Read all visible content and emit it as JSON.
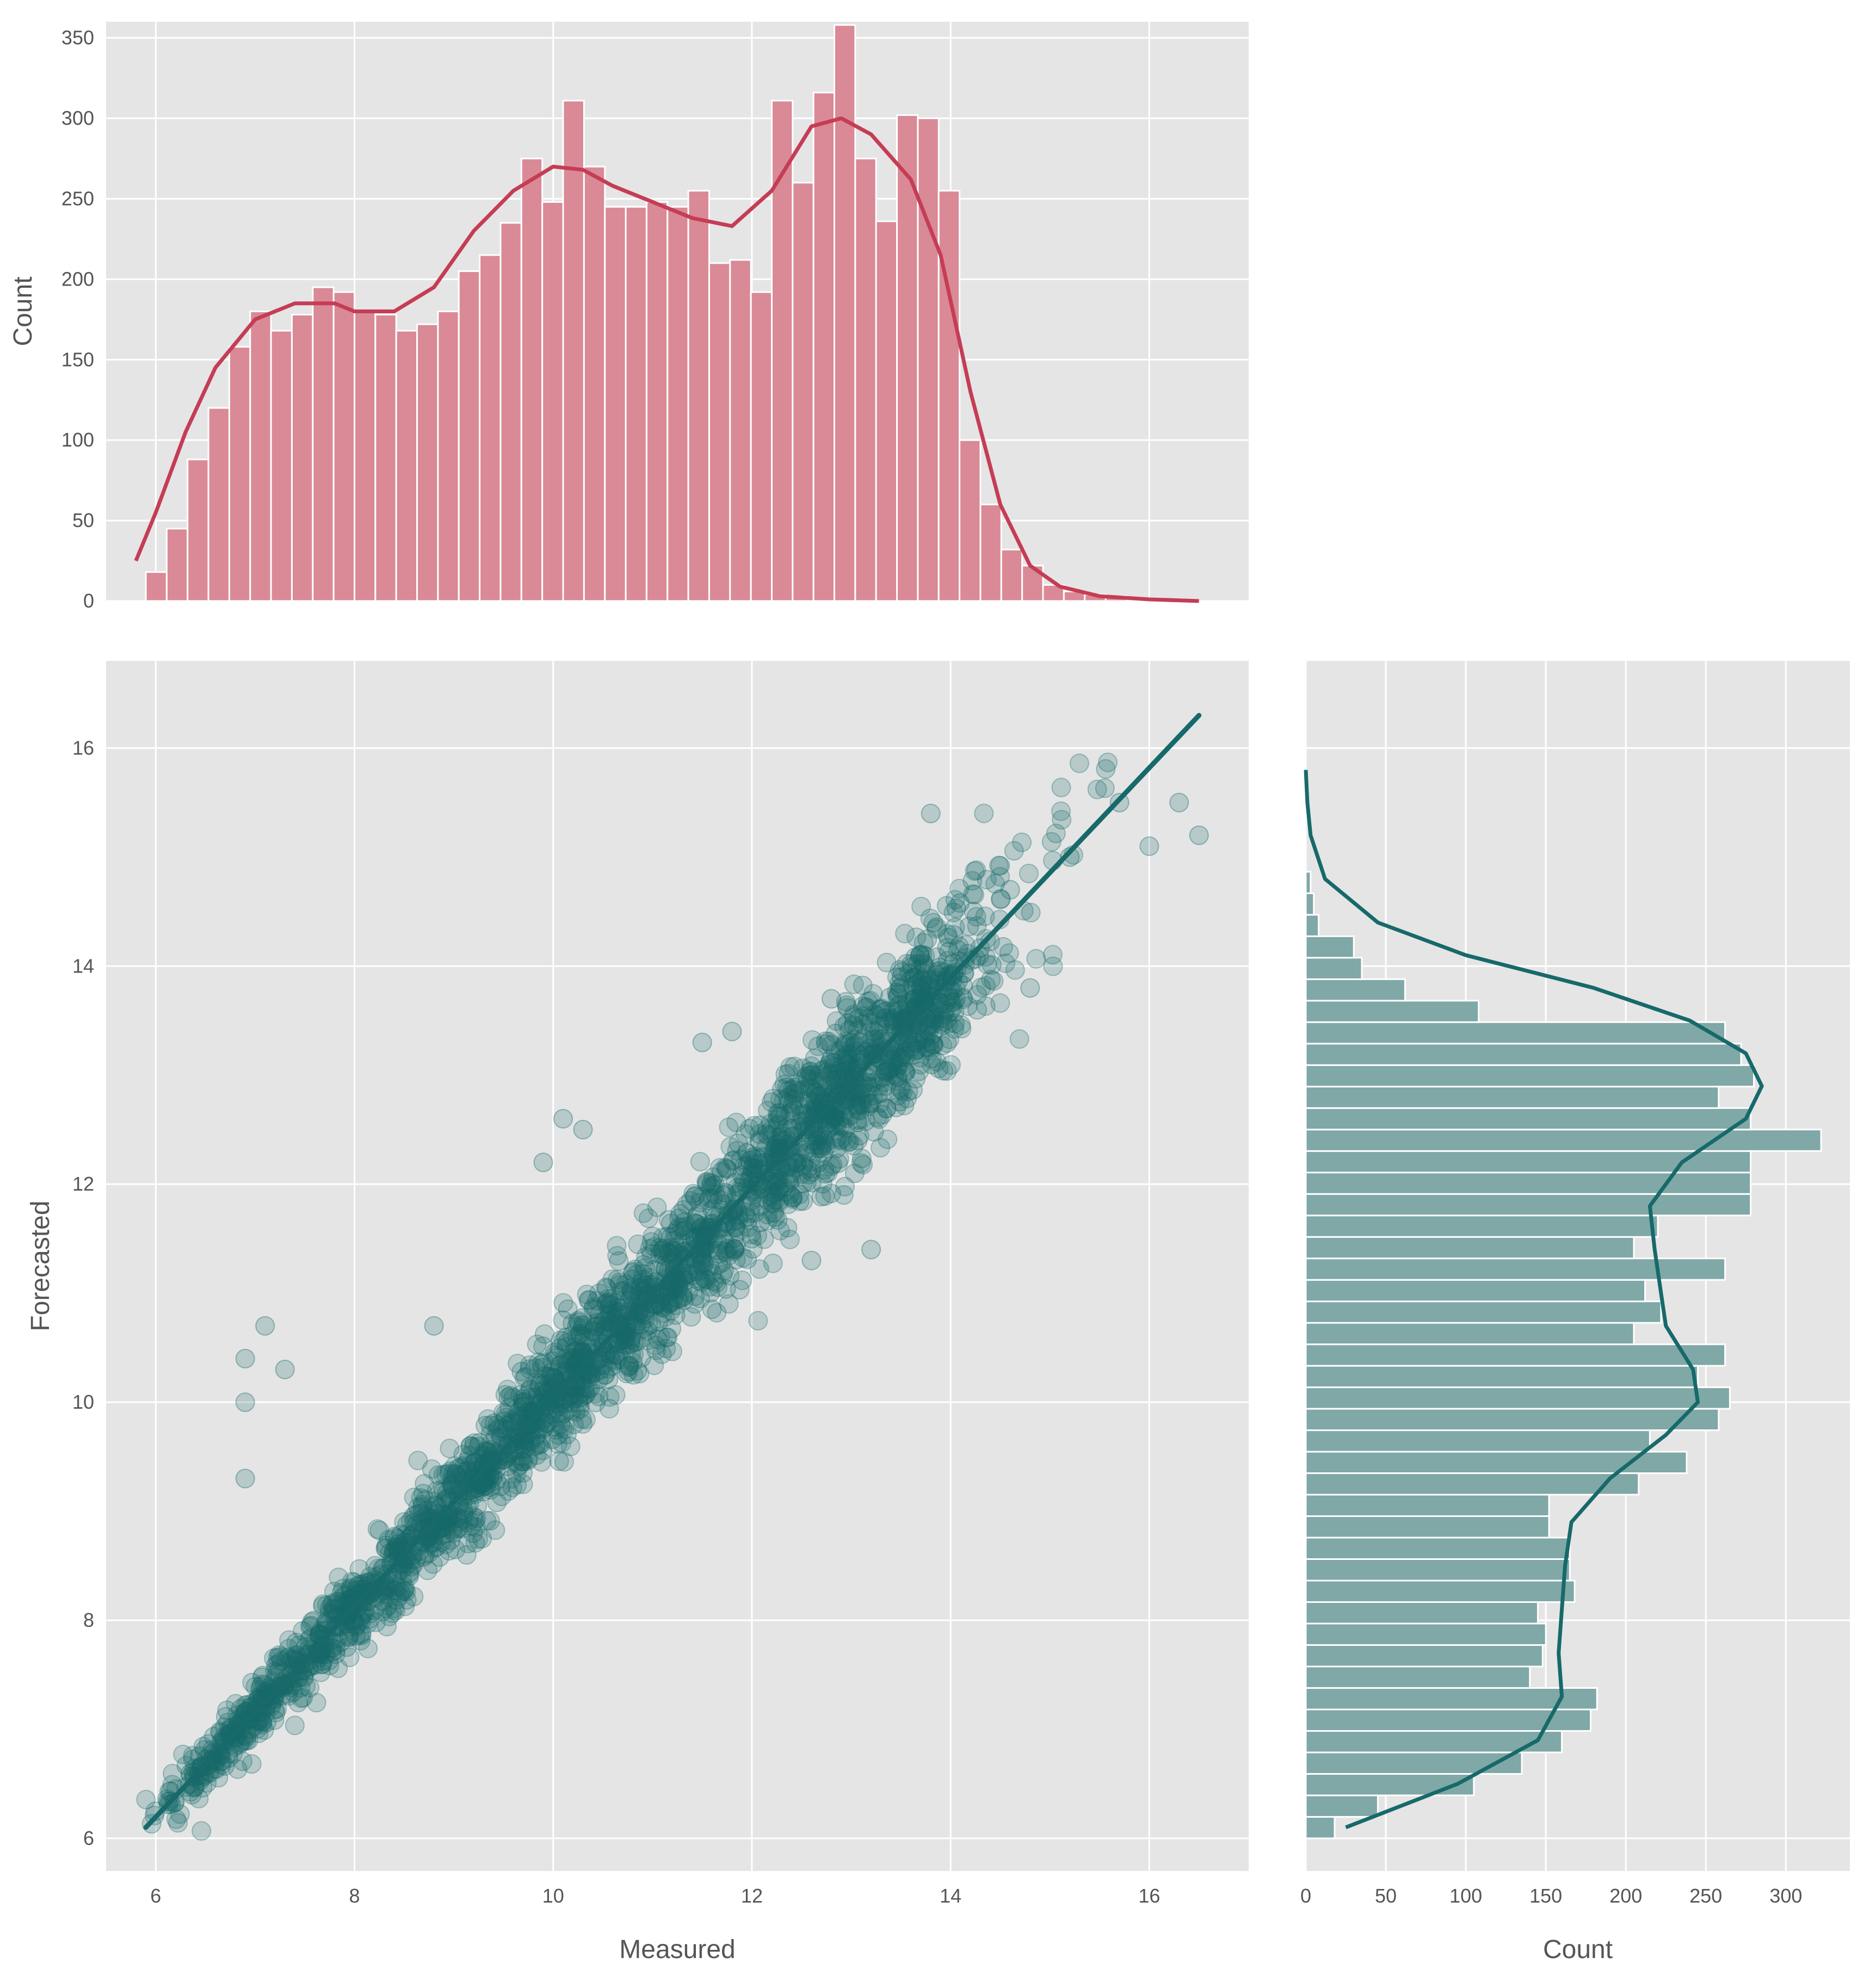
{
  "colors": {
    "panel_bg": "#e5e5e5",
    "grid": "#ffffff",
    "hist_top_fill": "#d98a96",
    "hist_top_line": "#c53d55",
    "scatter": "#17696a",
    "hist_right_fill": "#7fa8a7",
    "hist_right_line": "#17696a"
  },
  "chart_data": [
    {
      "type": "bar",
      "panel": "top-marginal",
      "xlabel": "",
      "ylabel": "Count",
      "xlim": [
        5.5,
        17.0
      ],
      "ylim": [
        0,
        360
      ],
      "yticks": [
        0,
        50,
        100,
        150,
        200,
        250,
        300,
        350
      ],
      "bin_start": 5.9,
      "bin_width": 0.21,
      "values": [
        18,
        45,
        88,
        120,
        158,
        180,
        168,
        178,
        195,
        192,
        180,
        178,
        168,
        172,
        180,
        205,
        215,
        235,
        275,
        248,
        311,
        270,
        245,
        245,
        248,
        245,
        255,
        210,
        212,
        192,
        311,
        260,
        316,
        358,
        275,
        236,
        302,
        300,
        255,
        100,
        60,
        32,
        22,
        10,
        6,
        4,
        3
      ],
      "kde": {
        "x": [
          5.8,
          6.0,
          6.3,
          6.6,
          7.0,
          7.4,
          7.8,
          8.0,
          8.4,
          8.8,
          9.2,
          9.6,
          10.0,
          10.3,
          10.6,
          11.0,
          11.4,
          11.8,
          12.2,
          12.6,
          12.9,
          13.2,
          13.6,
          13.9,
          14.2,
          14.5,
          14.8,
          15.1,
          15.5,
          16.0,
          16.5
        ],
        "y": [
          25,
          55,
          105,
          145,
          175,
          185,
          185,
          180,
          180,
          195,
          230,
          255,
          270,
          268,
          258,
          248,
          238,
          233,
          255,
          295,
          300,
          290,
          262,
          215,
          130,
          60,
          22,
          9,
          3,
          1,
          0
        ]
      }
    },
    {
      "type": "scatter",
      "panel": "joint",
      "xlabel": "Measured",
      "ylabel": "Forecasted",
      "xlim": [
        5.5,
        17.0
      ],
      "ylim": [
        5.7,
        16.8
      ],
      "xticks": [
        6,
        8,
        10,
        12,
        14,
        16
      ],
      "yticks": [
        6,
        8,
        10,
        12,
        14,
        16
      ],
      "n_points": 10000,
      "regression_line": {
        "x": [
          5.9,
          16.5
        ],
        "y": [
          6.1,
          16.3
        ]
      },
      "sample_outliers": {
        "x": [
          6.9,
          7.1,
          6.9,
          7.3,
          6.9,
          15.2,
          15.7,
          16.5,
          16.0,
          16.3,
          14.6,
          14.8,
          13.8,
          12.8,
          13.3,
          10.1,
          10.3,
          9.9,
          11.5,
          11.8,
          13.2,
          12.6,
          8.8,
          12.0,
          11.0
        ],
        "y": [
          10.4,
          10.7,
          10.0,
          10.3,
          9.3,
          15.0,
          15.5,
          15.2,
          15.1,
          15.5,
          14.7,
          13.8,
          15.4,
          13.7,
          13.6,
          12.6,
          12.5,
          12.2,
          13.3,
          13.4,
          11.4,
          11.3,
          10.7,
          11.5,
          10.9
        ]
      }
    },
    {
      "type": "bar",
      "orientation": "horizontal",
      "panel": "right-marginal",
      "xlabel": "Count",
      "ylabel": "",
      "xlim": [
        0,
        340
      ],
      "ylim": [
        5.7,
        16.8
      ],
      "xticks": [
        0,
        50,
        100,
        150,
        200,
        250,
        300
      ],
      "bin_start": 6.0,
      "bin_width": 0.197,
      "values": [
        18,
        45,
        105,
        135,
        160,
        178,
        182,
        140,
        148,
        150,
        145,
        168,
        165,
        165,
        152,
        152,
        208,
        238,
        215,
        258,
        265,
        245,
        262,
        205,
        222,
        212,
        262,
        205,
        220,
        278,
        278,
        278,
        322,
        278,
        258,
        280,
        272,
        262,
        108,
        62,
        35,
        30,
        8,
        5,
        3
      ],
      "kde": {
        "y": [
          6.1,
          6.5,
          6.9,
          7.3,
          7.7,
          8.1,
          8.5,
          8.9,
          9.3,
          9.7,
          10.0,
          10.3,
          10.7,
          11.0,
          11.4,
          11.8,
          12.2,
          12.6,
          12.9,
          13.2,
          13.5,
          13.8,
          14.1,
          14.4,
          14.8,
          15.2,
          15.5,
          15.8
        ],
        "x": [
          25,
          95,
          145,
          160,
          158,
          160,
          162,
          166,
          190,
          225,
          245,
          242,
          225,
          222,
          218,
          215,
          235,
          275,
          285,
          275,
          240,
          180,
          100,
          45,
          12,
          3,
          1,
          0
        ]
      }
    }
  ]
}
